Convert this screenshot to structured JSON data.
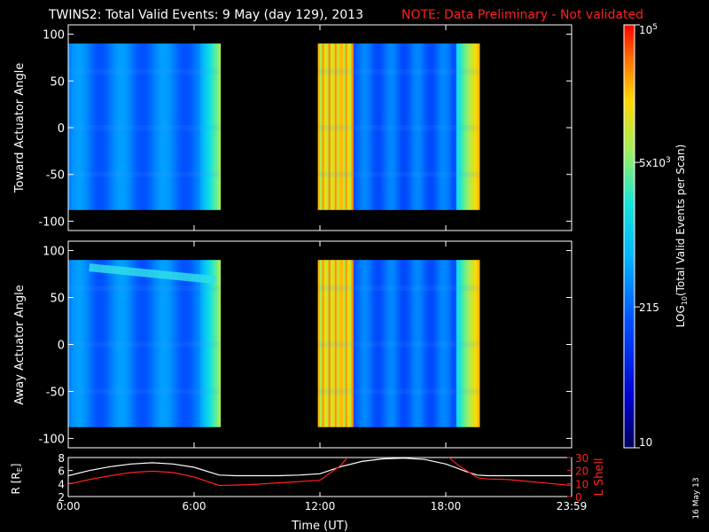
{
  "title": {
    "main": "TWINS2: Total Valid Events:  9 May (day 129), 2013",
    "note": "NOTE: Data Preliminary - Not validated"
  },
  "date_stamp": "16 May 13",
  "colors": {
    "background": "#000000",
    "axes": "#ffffff",
    "note": "#ff2020",
    "r_line": "#ffffff",
    "lshell_line": "#ff2020"
  },
  "chart_data": [
    {
      "id": "toward",
      "type": "heatmap",
      "ylabel": "Toward Actuator Angle",
      "ylim": [
        -110,
        110
      ],
      "yticks": [
        100,
        50,
        0,
        -50,
        -100
      ],
      "xlim": [
        0,
        24
      ],
      "x_ticks": [
        0,
        6,
        12,
        18,
        24
      ],
      "data_y_range": [
        -88,
        90
      ],
      "coverage_hours": [
        [
          0,
          7.25
        ],
        [
          11.9,
          19.6
        ]
      ],
      "overlay": "none"
    },
    {
      "id": "away",
      "type": "heatmap",
      "ylabel": "Away Actuator Angle",
      "ylim": [
        -110,
        110
      ],
      "yticks": [
        100,
        50,
        0,
        -50,
        -100
      ],
      "xlim": [
        0,
        24
      ],
      "x_ticks": [
        0,
        6,
        12,
        18,
        24
      ],
      "data_y_range": [
        -88,
        90
      ],
      "coverage_hours": [
        [
          0,
          7.25
        ],
        [
          11.9,
          19.6
        ]
      ],
      "overlay": "cyan band near 70-85 deg, 1:00-7:00 UT"
    },
    {
      "id": "orbit",
      "type": "line",
      "xlabel": "Time (UT)",
      "x_tick_labels": [
        "0:00",
        "6:00",
        "12:00",
        "18:00",
        "23:59"
      ],
      "x_ticks": [
        0,
        6,
        12,
        18,
        24
      ],
      "xlim": [
        0,
        24
      ],
      "left_axis": {
        "label": "R [RE]",
        "label_main": "R [R",
        "label_sub": "E",
        "label_end": "]",
        "ylim": [
          2,
          8
        ],
        "ticks": [
          2,
          4,
          6,
          8
        ]
      },
      "right_axis": {
        "label": "L Shell",
        "ylim": [
          0,
          30
        ],
        "ticks": [
          0,
          10,
          20,
          30
        ]
      },
      "series": [
        {
          "axis": "left",
          "x": [
            0,
            1,
            2,
            3,
            4,
            5,
            6,
            7.2,
            8,
            9,
            10,
            11,
            12,
            13,
            14,
            15,
            16,
            17,
            18,
            19,
            19.5,
            20,
            21,
            22,
            23,
            24
          ],
          "y": [
            5.2,
            6.0,
            6.6,
            7.0,
            7.2,
            7.0,
            6.5,
            5.3,
            5.2,
            5.2,
            5.2,
            5.3,
            5.5,
            6.6,
            7.4,
            7.8,
            7.9,
            7.7,
            7.0,
            5.8,
            5.3,
            5.2,
            5.2,
            5.2,
            5.2,
            5.2
          ]
        },
        {
          "axis": "right",
          "x": [
            0,
            1,
            2,
            3,
            4,
            5,
            6,
            7.2,
            8,
            9,
            10,
            11,
            12,
            13,
            13.4,
            18,
            18.6,
            19.5,
            20,
            21,
            22,
            23,
            24
          ],
          "y": [
            9.5,
            13,
            16,
            18.5,
            19.5,
            18.5,
            15,
            8.5,
            8.8,
            9.5,
            10.5,
            11.5,
            12.5,
            24,
            32,
            32,
            24,
            14.5,
            13.5,
            13,
            11.5,
            10,
            8.5
          ]
        }
      ]
    },
    {
      "id": "colorbar",
      "type": "heatmap",
      "label": "LOG10(Total Valid Events per Scan)",
      "label_main": "LOG",
      "label_sub": "10",
      "label_rest": "(Total Valid Events per Scan)",
      "scale": "log",
      "range": [
        10,
        100000
      ],
      "tick_values": [
        10,
        215,
        5000,
        100000
      ],
      "tick_labels": [
        {
          "base": "10",
          "exp": ""
        },
        {
          "base": "215",
          "exp": ""
        },
        {
          "base": "5x10",
          "exp": "3"
        },
        {
          "base": "10",
          "exp": "5"
        }
      ],
      "colors": [
        "#00005a",
        "#0000d0",
        "#0050ff",
        "#00b4ff",
        "#18e6d8",
        "#9cf060",
        "#ffd800",
        "#ff7000",
        "#ff0000"
      ]
    }
  ]
}
